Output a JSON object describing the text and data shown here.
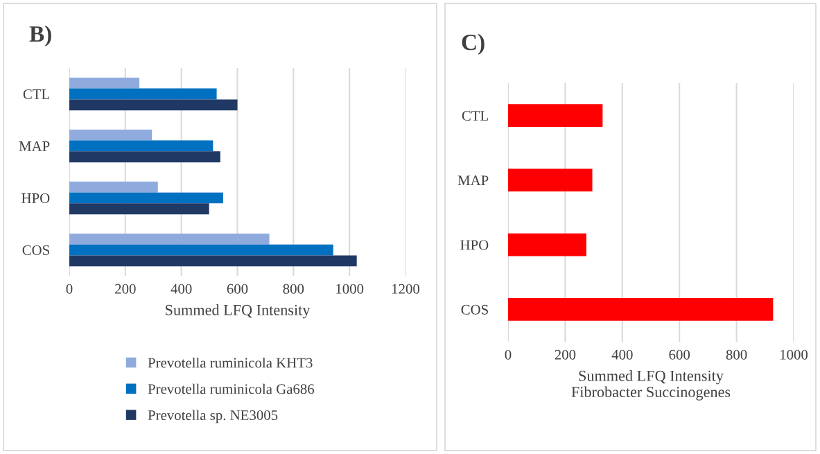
{
  "chart_data": [
    {
      "type": "bar",
      "title": "B)",
      "orientation": "horizontal",
      "categories": [
        "CTL",
        "MAP",
        "HPO",
        "COS"
      ],
      "series": [
        {
          "name": "Prevotella ruminicola KHT3",
          "color": "#8faadc",
          "values": [
            250,
            295,
            316,
            714
          ]
        },
        {
          "name": "Prevotella ruminicola Ga686",
          "color": "#0070c0",
          "values": [
            526,
            513,
            549,
            942
          ]
        },
        {
          "name": "Prevotella sp. NE3005",
          "color": "#203864",
          "values": [
            600,
            539,
            499,
            1026
          ]
        }
      ],
      "xlim": [
        0,
        1200
      ],
      "xticks": [
        0,
        200,
        400,
        600,
        800,
        1000,
        1200
      ],
      "xlabel": "Summed LFQ Intensity",
      "grid": "x",
      "legend": "bottom"
    },
    {
      "type": "bar",
      "title": "C)",
      "orientation": "horizontal",
      "categories": [
        "CTL",
        "MAP",
        "HPO",
        "COS"
      ],
      "series": [
        {
          "color": "#ff0000",
          "values": [
            331,
            295,
            274,
            928
          ]
        }
      ],
      "xlim": [
        0,
        1000
      ],
      "xticks": [
        0,
        200,
        400,
        600,
        800,
        1000
      ],
      "xlabel": "Summed LFQ Intensity\nFibrobacter Succinogenes",
      "grid": "x"
    }
  ]
}
